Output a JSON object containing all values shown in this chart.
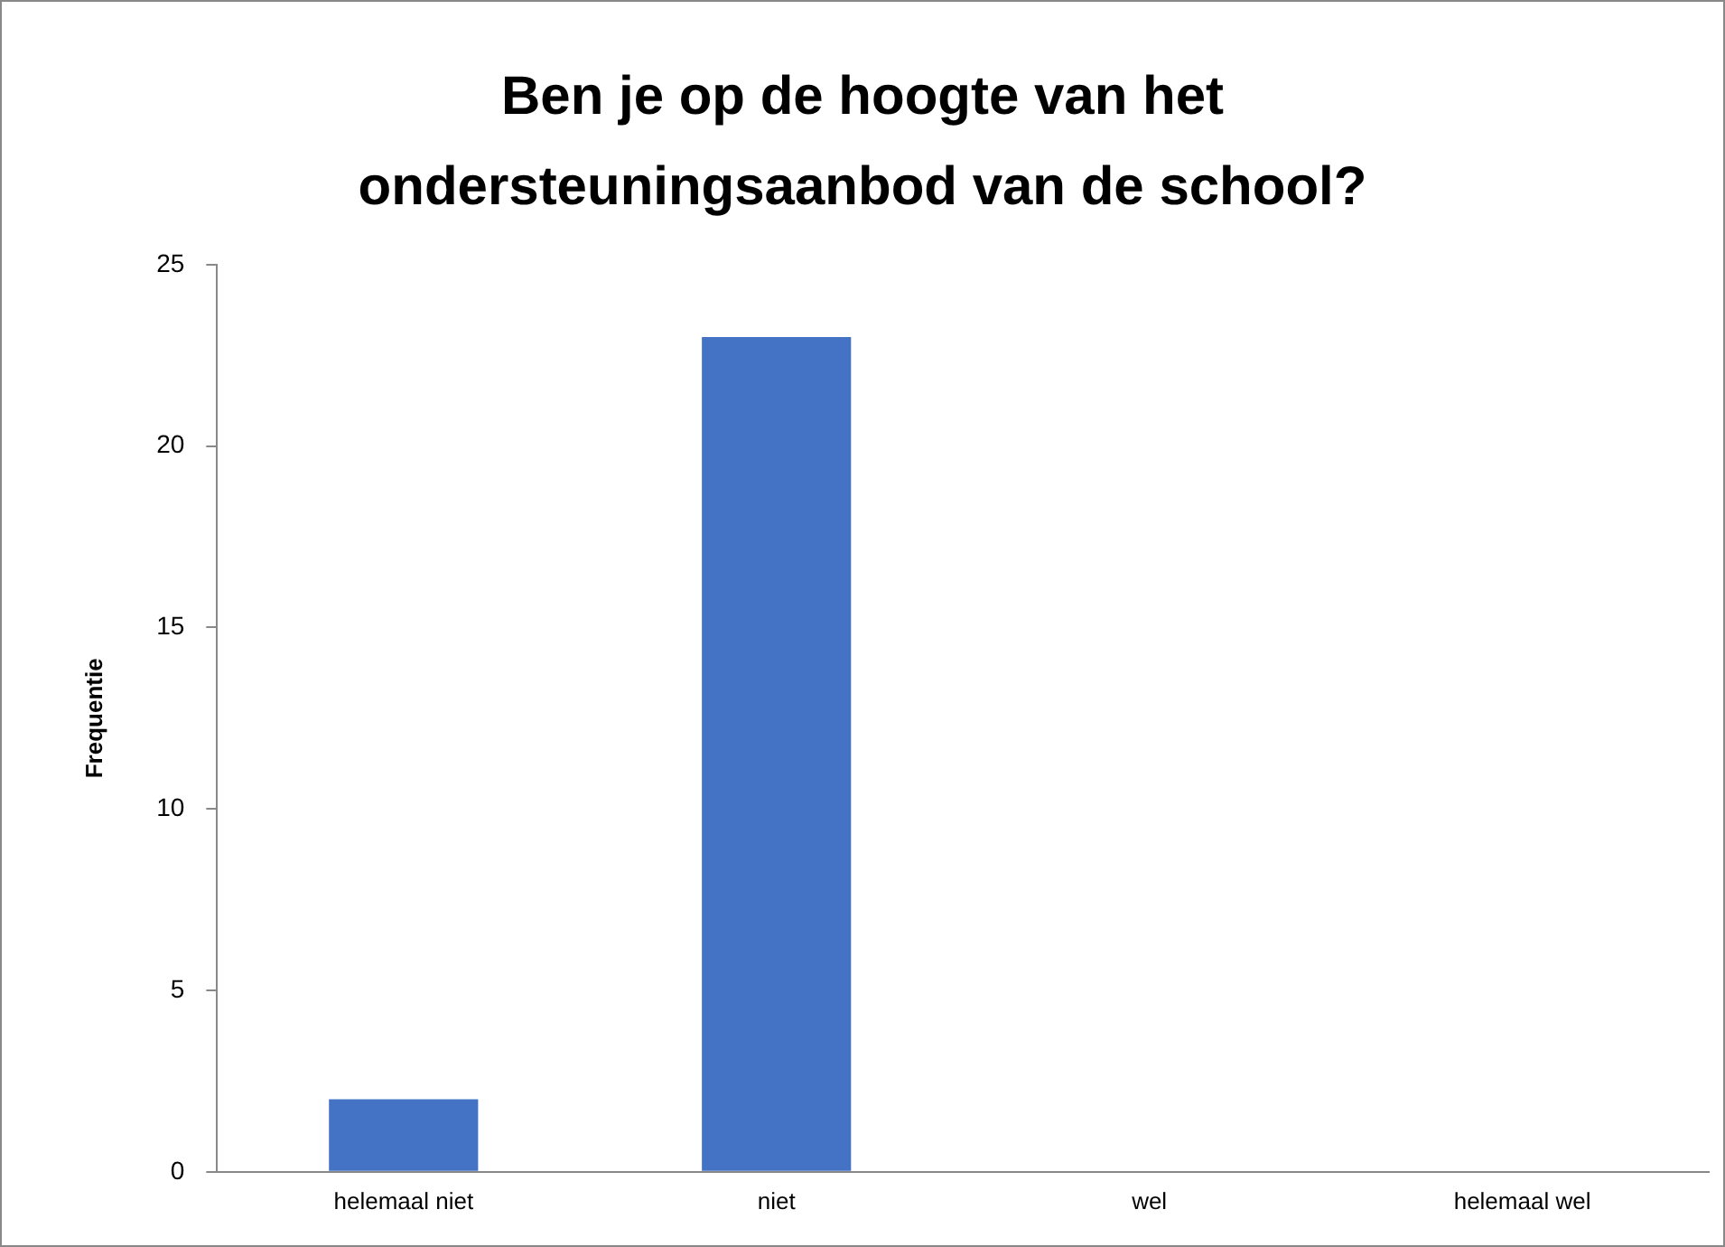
{
  "chart_data": {
    "type": "bar",
    "title": "Ben je op de hoogte van het ondersteuningsaanbod van de school?",
    "ylabel": "Frequentie",
    "categories": [
      "helemaal niet",
      "niet",
      "wel",
      "helemaal wel"
    ],
    "values": [
      2,
      23,
      0,
      0
    ],
    "color": "#4472c4",
    "ylim": [
      0,
      25
    ],
    "yticks": [
      0,
      5,
      10,
      15,
      20,
      25
    ],
    "grid": false,
    "legend": false
  }
}
